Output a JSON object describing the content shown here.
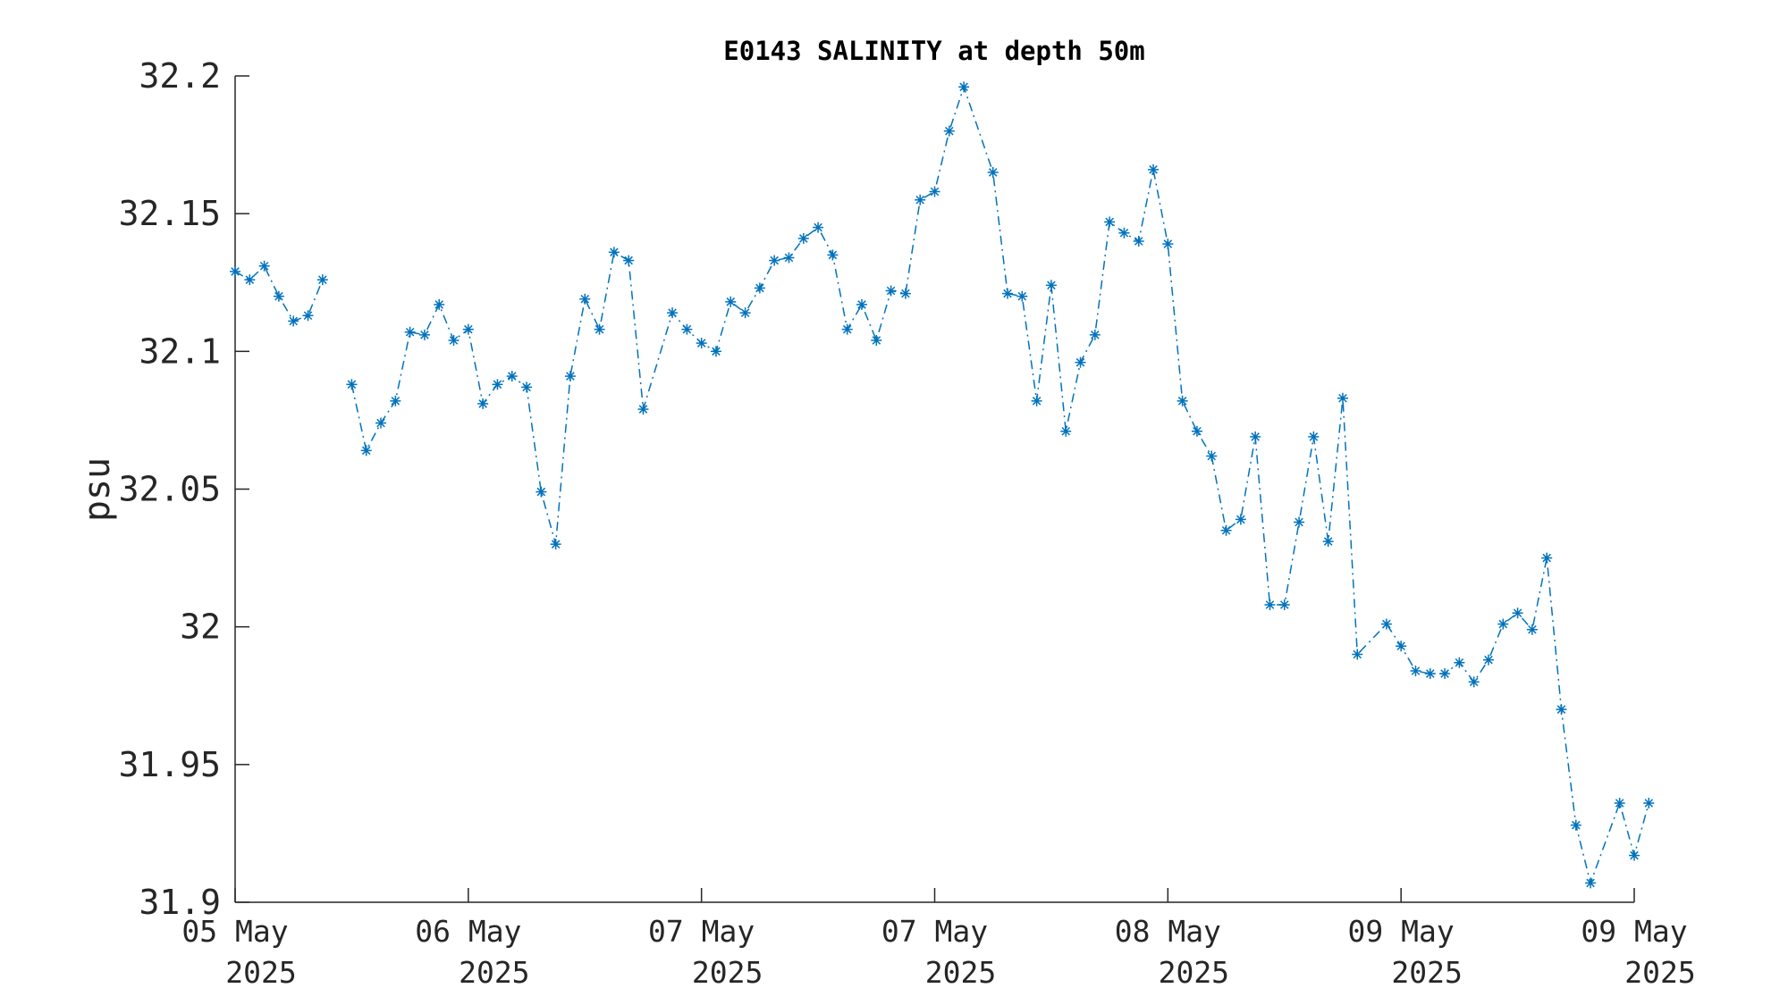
{
  "chart_data": {
    "type": "line",
    "title": "E0143 SALINITY at depth 50m",
    "xlabel": "",
    "ylabel": "psu",
    "ylim": [
      31.9,
      32.2
    ],
    "yticks": [
      "31.9",
      "31.95",
      "32",
      "32.05",
      "32.1",
      "32.15",
      "32.2"
    ],
    "xticks": [
      {
        "line1": "05 May",
        "line2": "2025"
      },
      {
        "line1": "06 May",
        "line2": "2025"
      },
      {
        "line1": "07 May",
        "line2": "2025"
      },
      {
        "line1": "07 May",
        "line2": "2025"
      },
      {
        "line1": "08 May",
        "line2": "2025"
      },
      {
        "line1": "09 May",
        "line2": "2025"
      },
      {
        "line1": "09 May",
        "line2": "2025"
      }
    ],
    "grid": false,
    "marker": "asterisk",
    "line_style": "dash-dot",
    "color": "#0072BD",
    "series": [
      {
        "segments": [
          [
            [
              0.0,
              32.129
            ],
            [
              0.0625,
              32.126
            ],
            [
              0.125,
              32.131
            ],
            [
              0.1875,
              32.12
            ],
            [
              0.25,
              32.111
            ],
            [
              0.3125,
              32.113
            ],
            [
              0.375,
              32.126
            ]
          ],
          [
            [
              0.5,
              32.088
            ],
            [
              0.5625,
              32.064
            ],
            [
              0.625,
              32.074
            ],
            [
              0.6875,
              32.082
            ],
            [
              0.75,
              32.107
            ],
            [
              0.8125,
              32.106
            ],
            [
              0.875,
              32.117
            ],
            [
              0.9375,
              32.104
            ],
            [
              1.0,
              32.108
            ],
            [
              1.0625,
              32.081
            ],
            [
              1.125,
              32.088
            ],
            [
              1.1875,
              32.091
            ],
            [
              1.25,
              32.087
            ],
            [
              1.3125,
              32.049
            ],
            [
              1.375,
              32.03
            ],
            [
              1.4375,
              32.091
            ],
            [
              1.5,
              32.119
            ],
            [
              1.5625,
              32.108
            ],
            [
              1.625,
              32.136
            ],
            [
              1.6875,
              32.133
            ],
            [
              1.75,
              32.079
            ],
            [
              1.875,
              32.114
            ],
            [
              1.9375,
              32.108
            ],
            [
              2.0,
              32.103
            ],
            [
              2.0625,
              32.1
            ],
            [
              2.125,
              32.118
            ],
            [
              2.1875,
              32.114
            ],
            [
              2.25,
              32.123
            ],
            [
              2.3125,
              32.133
            ],
            [
              2.375,
              32.134
            ],
            [
              2.4375,
              32.141
            ],
            [
              2.5,
              32.145
            ],
            [
              2.5625,
              32.135
            ],
            [
              2.625,
              32.108
            ],
            [
              2.6875,
              32.117
            ],
            [
              2.75,
              32.104
            ],
            [
              2.8125,
              32.122
            ],
            [
              2.875,
              32.121
            ],
            [
              2.9375,
              32.155
            ],
            [
              3.0,
              32.158
            ],
            [
              3.0625,
              32.18
            ],
            [
              3.125,
              32.196
            ],
            [
              3.25,
              32.165
            ],
            [
              3.3125,
              32.121
            ],
            [
              3.375,
              32.12
            ],
            [
              3.4375,
              32.082
            ],
            [
              3.5,
              32.124
            ],
            [
              3.5625,
              32.071
            ],
            [
              3.625,
              32.096
            ],
            [
              3.6875,
              32.106
            ],
            [
              3.75,
              32.147
            ],
            [
              3.8125,
              32.143
            ],
            [
              3.875,
              32.14
            ],
            [
              3.9375,
              32.166
            ],
            [
              4.0,
              32.139
            ],
            [
              4.0625,
              32.082
            ],
            [
              4.125,
              32.071
            ],
            [
              4.1875,
              32.062
            ],
            [
              4.25,
              32.035
            ],
            [
              4.3125,
              32.039
            ],
            [
              4.375,
              32.069
            ],
            [
              4.4375,
              32.008
            ],
            [
              4.5,
              32.008
            ],
            [
              4.5625,
              32.038
            ],
            [
              4.625,
              32.069
            ],
            [
              4.6875,
              32.031
            ],
            [
              4.75,
              32.083
            ],
            [
              4.8125,
              31.99
            ],
            [
              4.9375,
              32.001
            ],
            [
              5.0,
              31.993
            ],
            [
              5.0625,
              31.984
            ],
            [
              5.125,
              31.983
            ],
            [
              5.1875,
              31.983
            ],
            [
              5.25,
              31.987
            ],
            [
              5.3125,
              31.98
            ],
            [
              5.375,
              31.988
            ],
            [
              5.4375,
              32.001
            ],
            [
              5.5,
              32.005
            ],
            [
              5.5625,
              31.999
            ],
            [
              5.625,
              32.025
            ],
            [
              5.6875,
              31.97
            ],
            [
              5.75,
              31.928
            ],
            [
              5.8125,
              31.907
            ],
            [
              5.9375,
              31.936
            ],
            [
              6.0,
              31.917
            ],
            [
              6.0625,
              31.936
            ]
          ]
        ]
      }
    ]
  }
}
